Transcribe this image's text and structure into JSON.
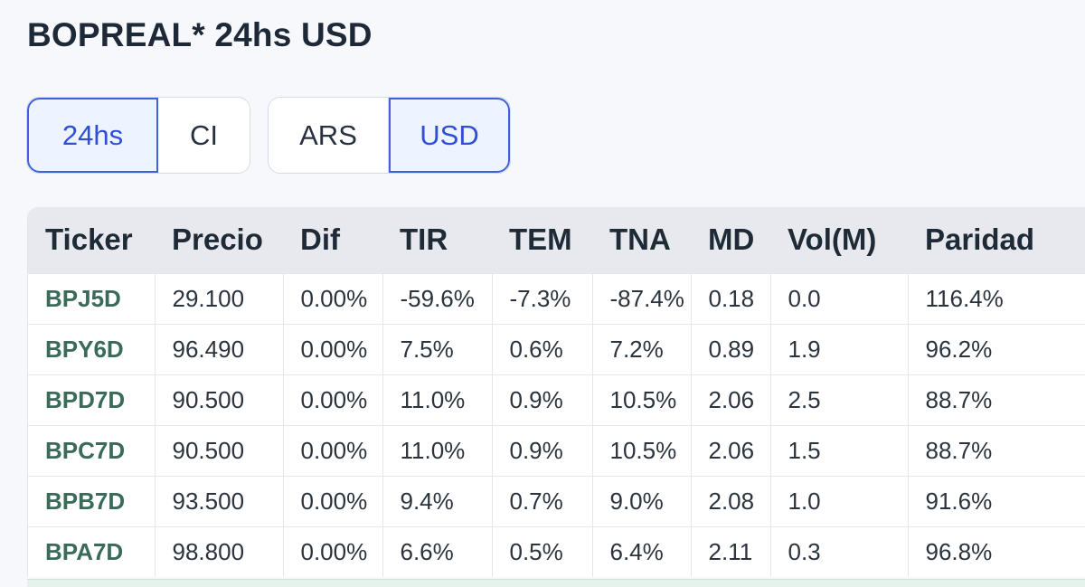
{
  "page": {
    "title": "BOPREAL* 24hs USD"
  },
  "toggles": {
    "settlement": [
      {
        "label": "24hs",
        "active": true
      },
      {
        "label": "CI",
        "active": false
      }
    ],
    "currency": [
      {
        "label": "ARS",
        "active": false
      },
      {
        "label": "USD",
        "active": true
      }
    ]
  },
  "table": {
    "headers": [
      "Ticker",
      "Precio",
      "Dif",
      "TIR",
      "TEM",
      "TNA",
      "MD",
      "Vol(M)",
      "Paridad"
    ],
    "rows": [
      [
        "BPJ5D",
        "29.100",
        "0.00%",
        "-59.6%",
        "-7.3%",
        "-87.4%",
        "0.18",
        "0.0",
        "116.4%"
      ],
      [
        "BPY6D",
        "96.490",
        "0.00%",
        "7.5%",
        "0.6%",
        "7.2%",
        "0.89",
        "1.9",
        "96.2%"
      ],
      [
        "BPD7D",
        "90.500",
        "0.00%",
        "11.0%",
        "0.9%",
        "10.5%",
        "2.06",
        "2.5",
        "88.7%"
      ],
      [
        "BPC7D",
        "90.500",
        "0.00%",
        "11.0%",
        "0.9%",
        "10.5%",
        "2.06",
        "1.5",
        "88.7%"
      ],
      [
        "BPB7D",
        "93.500",
        "0.00%",
        "9.4%",
        "0.7%",
        "9.0%",
        "2.08",
        "1.0",
        "91.6%"
      ],
      [
        "BPA7D",
        "98.800",
        "0.00%",
        "6.6%",
        "0.5%",
        "6.4%",
        "2.11",
        "0.3",
        "96.8%"
      ]
    ]
  },
  "colors": {
    "accent": "#3f61d9",
    "ticker": "#3a6a58",
    "header_bg": "#e7e9ee"
  }
}
